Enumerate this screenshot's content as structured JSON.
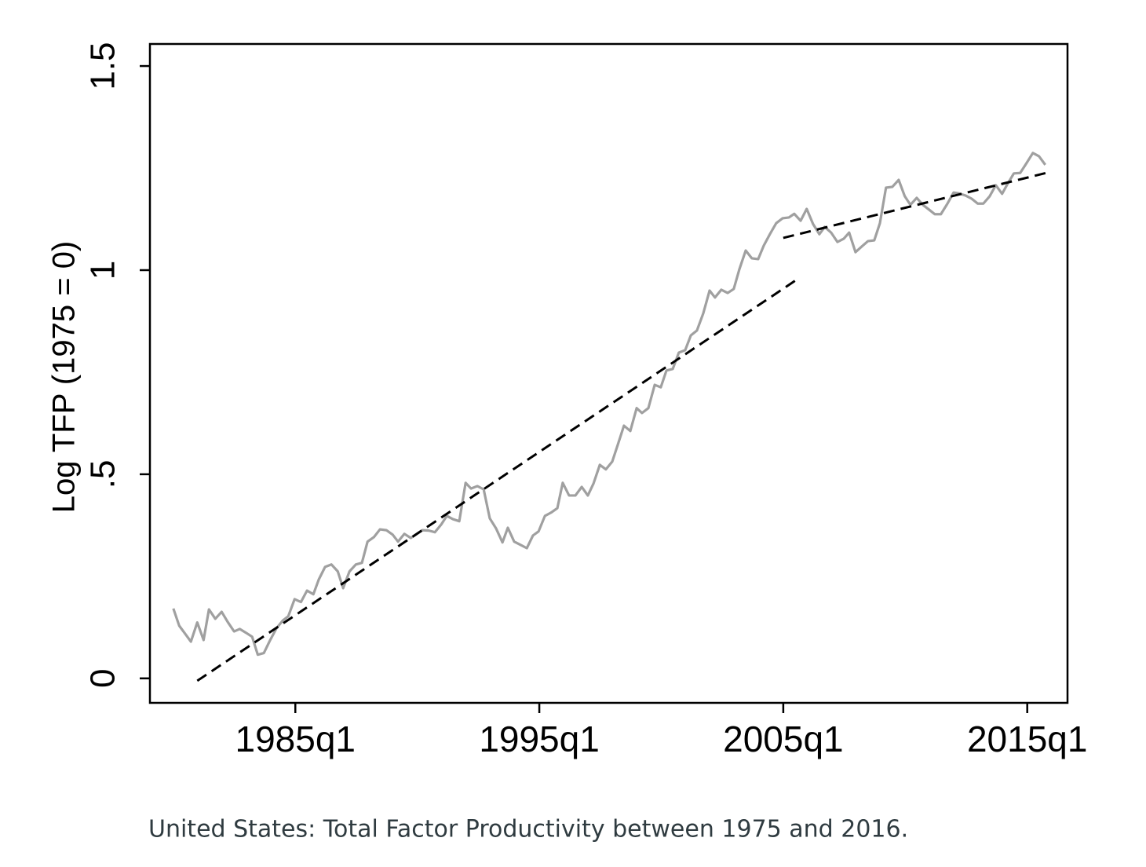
{
  "chart_data": {
    "type": "line",
    "ylabel": "Log TFP (1975 = 0)",
    "caption": "United States: Total Factor Productivity between 1975 and 2016.",
    "xlim": [
      1979.04,
      2016.65
    ],
    "ylim": [
      -0.06,
      1.554
    ],
    "xticks": [
      {
        "value": 1985,
        "label": "1985q1"
      },
      {
        "value": 1995,
        "label": "1995q1"
      },
      {
        "value": 2005,
        "label": "2005q1"
      },
      {
        "value": 2015,
        "label": "2015q1"
      }
    ],
    "yticks": [
      0,
      {
        "value": 0.5,
        "label": ".5"
      },
      1,
      1.5
    ],
    "series": [
      {
        "color": "#a0a0a0",
        "dash": false,
        "x": [
          1980.0,
          1980.24,
          1980.5,
          1980.72,
          1980.98,
          1981.24,
          1981.46,
          1981.72,
          1981.98,
          1982.23,
          1982.49,
          1982.72,
          1982.97,
          1983.23,
          1983.46,
          1983.71,
          1983.97,
          1984.23,
          1984.49,
          1984.71,
          1984.97,
          1985.23,
          1985.48,
          1985.74,
          1985.96,
          1986.22,
          1986.48,
          1986.74,
          1986.96,
          1987.22,
          1987.48,
          1987.73,
          1987.96,
          1988.22,
          1988.47,
          1988.73,
          1988.99,
          1989.21,
          1989.47,
          1989.73,
          1989.98,
          1990.21,
          1990.47,
          1990.72,
          1990.98,
          1991.21,
          1991.46,
          1991.72,
          1991.98,
          1992.2,
          1992.46,
          1992.72,
          1992.97,
          1993.23,
          1993.49,
          1993.71,
          1993.97,
          1994.23,
          1994.49,
          1994.74,
          1994.97,
          1995.23,
          1995.48,
          1995.74,
          1995.96,
          1996.22,
          1996.48,
          1996.74,
          1996.99,
          1997.22,
          1997.48,
          1997.73,
          1997.99,
          1998.22,
          1998.47,
          1998.73,
          1998.99,
          1999.21,
          1999.47,
          1999.73,
          1999.98,
          2000.21,
          2000.47,
          2000.72,
          2000.98,
          2001.21,
          2001.46,
          2001.72,
          2001.98,
          2002.2,
          2002.46,
          2002.72,
          2002.97,
          2003.2,
          2003.46,
          2003.71,
          2003.97,
          2004.2,
          2004.45,
          2004.71,
          2004.97,
          2005.23,
          2005.45,
          2005.71,
          2005.96,
          2006.22,
          2006.48,
          2006.7,
          2006.96,
          2007.22,
          2007.48,
          2007.7,
          2007.96,
          2008.22,
          2008.47,
          2008.73,
          2008.96,
          2009.21,
          2009.47,
          2009.73,
          2009.98,
          2010.21,
          2010.47,
          2010.72,
          2010.98,
          2011.21,
          2011.46,
          2011.72,
          2011.98,
          2012.2,
          2012.46,
          2012.72,
          2012.97,
          2013.2,
          2013.46,
          2013.71,
          2013.97,
          2014.2,
          2014.45,
          2014.71,
          2014.97,
          2015.23,
          2015.48,
          2015.74
        ],
        "values": [
          0.171,
          0.129,
          0.108,
          0.09,
          0.137,
          0.094,
          0.169,
          0.146,
          0.163,
          0.138,
          0.115,
          0.121,
          0.112,
          0.102,
          0.058,
          0.062,
          0.094,
          0.123,
          0.142,
          0.152,
          0.194,
          0.187,
          0.215,
          0.206,
          0.242,
          0.273,
          0.279,
          0.262,
          0.221,
          0.262,
          0.279,
          0.283,
          0.335,
          0.346,
          0.365,
          0.363,
          0.352,
          0.335,
          0.354,
          0.344,
          0.354,
          0.363,
          0.362,
          0.358,
          0.377,
          0.398,
          0.39,
          0.385,
          0.479,
          0.465,
          0.471,
          0.463,
          0.392,
          0.367,
          0.333,
          0.369,
          0.335,
          0.327,
          0.319,
          0.35,
          0.36,
          0.398,
          0.406,
          0.417,
          0.479,
          0.448,
          0.448,
          0.469,
          0.448,
          0.477,
          0.523,
          0.512,
          0.531,
          0.573,
          0.619,
          0.606,
          0.662,
          0.65,
          0.662,
          0.719,
          0.713,
          0.754,
          0.758,
          0.798,
          0.804,
          0.84,
          0.852,
          0.894,
          0.95,
          0.933,
          0.952,
          0.944,
          0.954,
          1.002,
          1.048,
          1.029,
          1.027,
          1.06,
          1.088,
          1.115,
          1.127,
          1.129,
          1.138,
          1.121,
          1.15,
          1.113,
          1.088,
          1.106,
          1.092,
          1.069,
          1.077,
          1.092,
          1.044,
          1.058,
          1.071,
          1.073,
          1.115,
          1.202,
          1.204,
          1.221,
          1.181,
          1.16,
          1.177,
          1.16,
          1.148,
          1.137,
          1.137,
          1.162,
          1.19,
          1.188,
          1.183,
          1.175,
          1.163,
          1.163,
          1.181,
          1.208,
          1.187,
          1.212,
          1.237,
          1.238,
          1.262,
          1.287,
          1.279,
          1.258
        ]
      },
      {
        "color": "#000000",
        "dash": true,
        "x": [
          1980.98,
          2005.61
        ],
        "values": [
          -0.006,
          0.979
        ]
      },
      {
        "color": "#000000",
        "dash": true,
        "x": [
          2005.0,
          2015.77
        ],
        "values": [
          1.079,
          1.238
        ]
      }
    ]
  }
}
